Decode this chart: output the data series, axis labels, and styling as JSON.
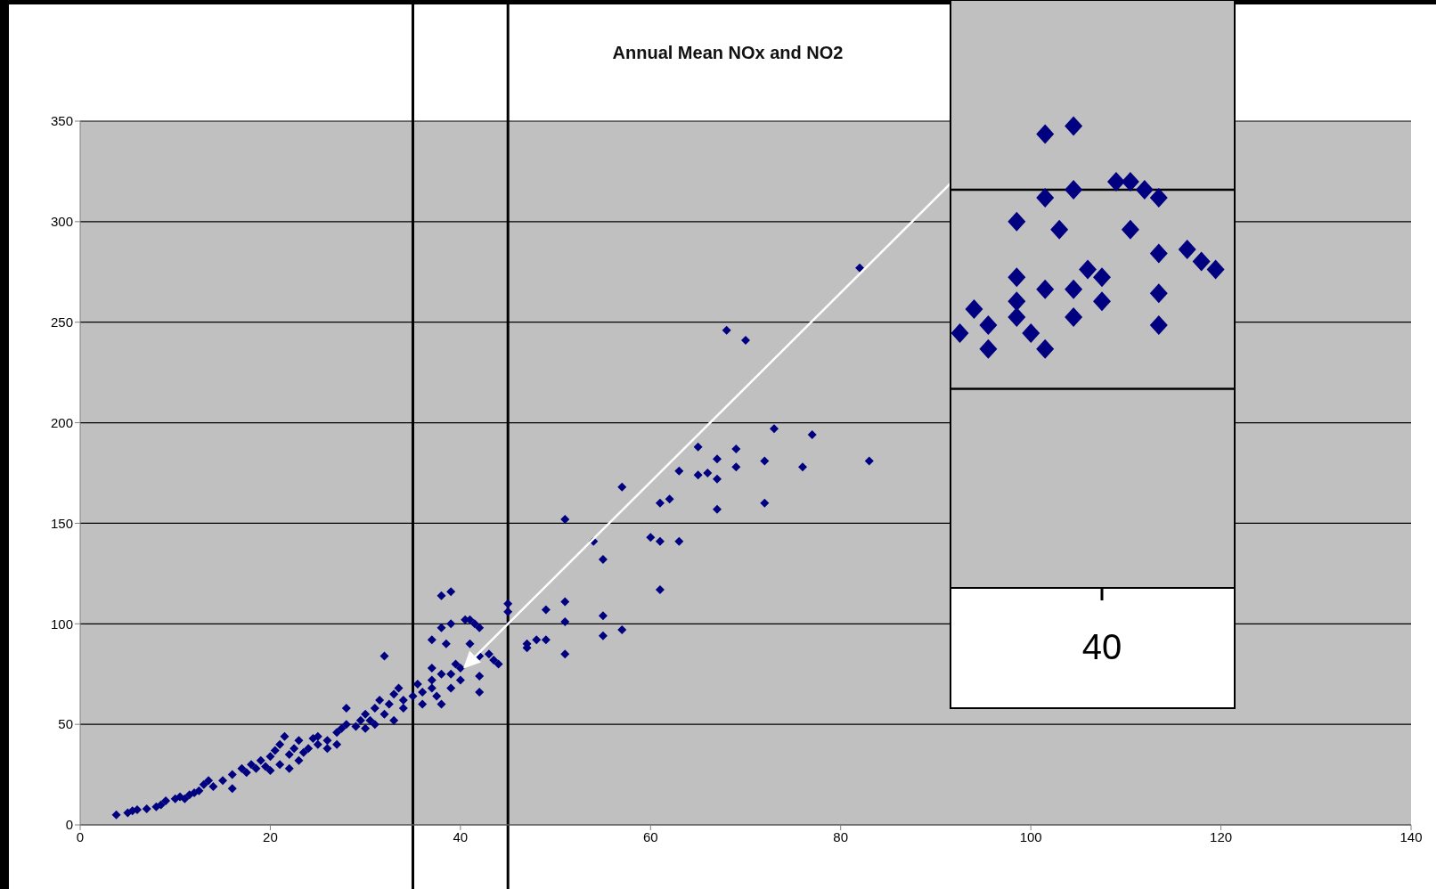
{
  "chart_data": {
    "type": "scatter",
    "title": "Annual Mean NOx and NO2",
    "marker": "diamond",
    "grid": "y",
    "xlim": [
      0,
      140
    ],
    "xticks": [
      0,
      20,
      40,
      60,
      80,
      100,
      120,
      140
    ],
    "ylim": [
      0,
      350
    ],
    "yticks": [
      0,
      50,
      100,
      150,
      200,
      250,
      300,
      350
    ],
    "ref_lines": [
      {
        "axis": "x",
        "value": 35,
        "color": "#000000"
      },
      {
        "axis": "x",
        "value": 45,
        "color": "#000000"
      }
    ],
    "annotations": [
      "40"
    ],
    "series": [
      {
        "color": "#000080",
        "x": [
          3.8,
          5,
          5.5,
          6,
          7,
          8,
          8.5,
          9,
          10,
          10.5,
          11,
          11.5,
          12,
          12.5,
          13,
          13.5,
          14,
          15,
          16,
          16,
          17,
          17.5,
          18,
          18.5,
          19,
          19.5,
          20,
          20,
          20.5,
          21,
          21,
          21.5,
          22,
          22,
          22.5,
          23,
          23,
          23.5,
          24,
          24.5,
          25,
          25,
          26,
          26,
          27,
          27,
          27.5,
          28,
          28,
          29,
          29.5,
          30,
          30,
          30.5,
          31,
          31,
          31.5,
          32,
          32,
          32.5,
          33,
          33,
          33.5,
          34,
          34,
          35,
          35.5,
          36,
          36,
          37,
          37,
          37,
          37,
          37.5,
          38,
          38,
          38,
          38,
          38.5,
          39,
          39,
          39,
          39,
          39.5,
          40,
          40,
          40.5,
          41,
          41,
          41.5,
          42,
          42,
          42,
          42,
          43,
          43.5,
          44,
          45,
          45,
          47,
          47,
          48,
          49,
          49,
          51,
          51,
          51,
          51,
          54,
          55,
          55,
          55,
          57,
          57,
          60,
          61,
          61,
          61,
          62,
          63,
          63,
          65,
          65,
          66,
          67,
          67,
          67,
          68,
          69,
          69,
          70,
          72,
          72,
          73,
          76,
          77,
          82,
          83
        ],
        "values": [
          5,
          6,
          7,
          7.5,
          8,
          9,
          10,
          12,
          13,
          14,
          13,
          15,
          16,
          17,
          20,
          22,
          19,
          22,
          25,
          18,
          28,
          26,
          30,
          28,
          32,
          29,
          27,
          34,
          37,
          40,
          30,
          44,
          35,
          28,
          38,
          42,
          32,
          36,
          38,
          43,
          40,
          44,
          42,
          38,
          46,
          40,
          48,
          58,
          50,
          49,
          52,
          55,
          48,
          52,
          58,
          50,
          62,
          55,
          84,
          60,
          52,
          65,
          68,
          62,
          58,
          64,
          70,
          60,
          66,
          92,
          72,
          78,
          68,
          64,
          114,
          98,
          75,
          60,
          90,
          116,
          100,
          75,
          68,
          80,
          78,
          72,
          102,
          102,
          90,
          100,
          98,
          84,
          74,
          66,
          85,
          82,
          80,
          110,
          106,
          90,
          88,
          92,
          92,
          107,
          152,
          111,
          101,
          85,
          141,
          132,
          104,
          94,
          168,
          97,
          143,
          141,
          160,
          117,
          162,
          176,
          141,
          188,
          174,
          175,
          182,
          172,
          157,
          246,
          187,
          178,
          241,
          181,
          160,
          197,
          178,
          194,
          277,
          181
        ]
      }
    ]
  }
}
